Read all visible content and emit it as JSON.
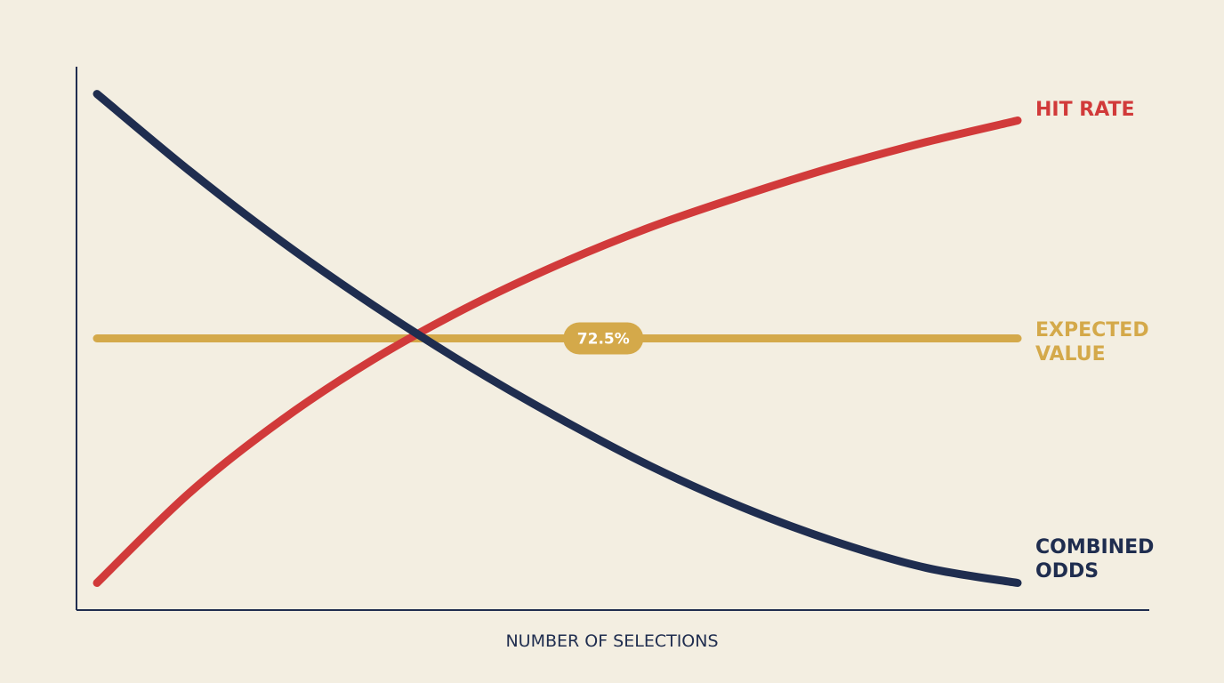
{
  "chart_data": {
    "type": "line",
    "xlabel": "NUMBER OF SELECTIONS",
    "ylabel": "",
    "grid": false,
    "legend": "inline-right",
    "x": [
      0,
      1,
      2,
      3,
      4,
      5,
      6,
      7,
      8,
      9,
      10
    ],
    "xlim": [
      0,
      10
    ],
    "ylim": [
      0,
      100
    ],
    "series": [
      {
        "name": "HIT RATE",
        "color": "#d13a3a",
        "values": [
          5,
          21.5,
          34.9,
          46.1,
          55.5,
          63.5,
          70.4,
          76.2,
          81.5,
          86.1,
          90.1
        ]
      },
      {
        "name": "COMBINED ODDS",
        "color": "#1f2d4f",
        "values": [
          95,
          80.9,
          67.9,
          56.1,
          45.3,
          35.5,
          26.6,
          19,
          12.7,
          7.8,
          5
        ]
      },
      {
        "name": "EXPECTED VALUE",
        "color": "#d4a94a",
        "values": [
          50,
          50,
          50,
          50,
          50,
          50,
          50,
          50,
          50,
          50,
          50
        ]
      }
    ],
    "annotations": [
      {
        "series": "EXPECTED VALUE",
        "x": 5.5,
        "text": "72.5%"
      }
    ]
  }
}
